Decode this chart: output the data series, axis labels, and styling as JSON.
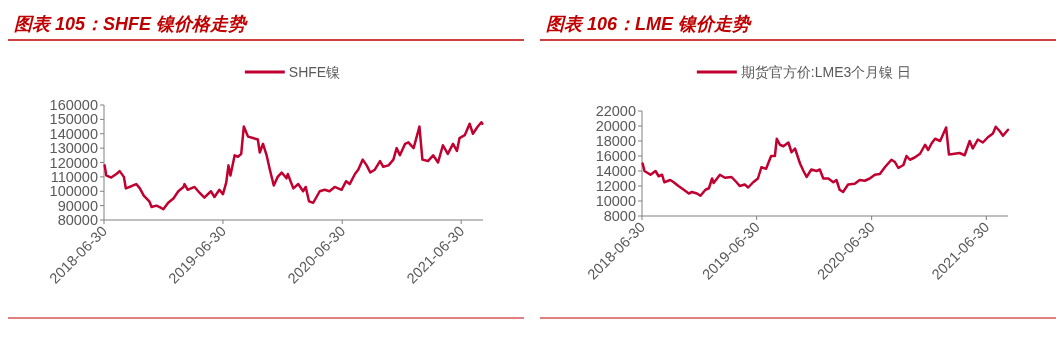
{
  "chart_data": [
    {
      "type": "line",
      "title": "图表 105：SHFE 镍价格走势",
      "legend": "top",
      "grid": false,
      "xlim": [
        "2018-06-30",
        "2021-09-05"
      ],
      "xticks": [
        "2018-06-30",
        "2019-06-30",
        "2020-06-30",
        "2021-06-30"
      ],
      "ylim": [
        80000,
        160000
      ],
      "yticks": [
        80000,
        90000,
        100000,
        110000,
        120000,
        130000,
        140000,
        150000,
        160000
      ],
      "x": [
        "2018-07-02",
        "2018-07-07",
        "2018-07-22",
        "2018-08-07",
        "2018-08-17",
        "2018-08-30",
        "2018-09-05",
        "2018-09-22",
        "2018-10-07",
        "2018-10-18",
        "2018-10-30",
        "2018-11-16",
        "2018-11-23",
        "2018-12-08",
        "2018-12-18",
        "2018-12-29",
        "2019-01-13",
        "2019-01-29",
        "2019-02-13",
        "2019-03-01",
        "2019-03-04",
        "2019-03-14",
        "2019-03-24",
        "2019-04-04",
        "2019-04-19",
        "2019-05-04",
        "2019-05-24",
        "2019-06-04",
        "2019-06-19",
        "2019-06-30",
        "2019-07-10",
        "2019-07-17",
        "2019-07-23",
        "2019-08-05",
        "2019-08-15",
        "2019-08-25",
        "2019-09-02",
        "2019-09-15",
        "2019-09-30",
        "2019-10-15",
        "2019-10-21",
        "2019-10-31",
        "2019-11-11",
        "2019-11-21",
        "2019-12-03",
        "2019-12-15",
        "2019-12-27",
        "2020-01-11",
        "2020-01-15",
        "2020-02-01",
        "2020-02-16",
        "2020-03-02",
        "2020-03-10",
        "2020-03-20",
        "2020-04-02",
        "2020-04-22",
        "2020-05-07",
        "2020-05-22",
        "2020-06-07",
        "2020-06-28",
        "2020-07-12",
        "2020-07-23",
        "2020-08-08",
        "2020-08-18",
        "2020-09-01",
        "2020-09-13",
        "2020-09-24",
        "2020-10-08",
        "2020-10-24",
        "2020-11-03",
        "2020-11-19",
        "2020-12-04",
        "2020-12-14",
        "2020-12-24",
        "2021-01-09",
        "2021-01-19",
        "2021-02-04",
        "2021-02-22",
        "2021-03-03",
        "2021-03-20",
        "2021-04-05",
        "2021-04-20",
        "2021-05-05",
        "2021-05-20",
        "2021-06-05",
        "2021-06-17",
        "2021-06-25",
        "2021-07-11",
        "2021-07-26",
        "2021-08-05",
        "2021-08-20",
        "2021-08-31",
        "2021-09-03"
      ],
      "series": [
        {
          "name": "SHFE镍",
          "color": "#c00030",
          "values": [
            118000,
            111000,
            109500,
            112000,
            114000,
            110000,
            102000,
            103500,
            105000,
            102000,
            97000,
            93000,
            89000,
            90000,
            89000,
            87500,
            92000,
            95000,
            100000,
            103000,
            105000,
            101000,
            102000,
            103000,
            99000,
            95500,
            100000,
            96000,
            101000,
            98000,
            106000,
            118000,
            111000,
            125000,
            124000,
            126000,
            145000,
            138000,
            137000,
            136000,
            127000,
            133000,
            125000,
            115000,
            104000,
            110000,
            113000,
            109000,
            112000,
            102000,
            105000,
            100000,
            103000,
            93000,
            92000,
            100000,
            101000,
            100000,
            103000,
            101000,
            107000,
            105000,
            112000,
            115000,
            122000,
            118000,
            113000,
            115000,
            121000,
            117000,
            118000,
            122000,
            130000,
            125000,
            133000,
            134000,
            130000,
            145000,
            122000,
            121000,
            125000,
            120000,
            132000,
            126000,
            133000,
            128000,
            137000,
            139000,
            147000,
            140000,
            145000,
            148000,
            147000
          ]
        }
      ]
    },
    {
      "type": "line",
      "title": "图表 106：LME 镍价走势",
      "legend": "top",
      "grid": false,
      "xlim": [
        "2018-06-30",
        "2021-09-07"
      ],
      "xticks": [
        "2018-06-30",
        "2019-06-30",
        "2020-06-30",
        "2021-06-30"
      ],
      "ylim": [
        8000,
        22000
      ],
      "yticks": [
        8000,
        10000,
        12000,
        14000,
        16000,
        18000,
        20000,
        22000
      ],
      "x": [
        "2018-07-02",
        "2018-07-08",
        "2018-07-27",
        "2018-08-12",
        "2018-08-22",
        "2018-09-02",
        "2018-09-09",
        "2018-09-28",
        "2018-10-09",
        "2018-10-24",
        "2018-11-10",
        "2018-11-26",
        "2018-12-06",
        "2018-12-22",
        "2019-01-02",
        "2019-01-18",
        "2019-01-29",
        "2019-02-08",
        "2019-02-13",
        "2019-03-05",
        "2019-03-21",
        "2019-04-11",
        "2019-04-27",
        "2019-05-07",
        "2019-05-23",
        "2019-06-03",
        "2019-06-19",
        "2019-07-04",
        "2019-07-15",
        "2019-07-30",
        "2019-08-15",
        "2019-08-27",
        "2019-09-02",
        "2019-09-12",
        "2019-09-23",
        "2019-10-09",
        "2019-10-19",
        "2019-10-30",
        "2019-11-15",
        "2019-11-26",
        "2019-12-06",
        "2019-12-21",
        "2020-01-07",
        "2020-01-17",
        "2020-01-28",
        "2020-02-13",
        "2020-02-29",
        "2020-03-10",
        "2020-03-20",
        "2020-03-31",
        "2020-04-16",
        "2020-05-07",
        "2020-05-23",
        "2020-06-08",
        "2020-06-24",
        "2020-07-10",
        "2020-07-26",
        "2020-08-11",
        "2020-09-01",
        "2020-09-12",
        "2020-09-23",
        "2020-10-09",
        "2020-10-19",
        "2020-10-30",
        "2020-11-14",
        "2020-12-01",
        "2020-12-17",
        "2020-12-27",
        "2021-01-07",
        "2021-01-18",
        "2021-02-03",
        "2021-02-22",
        "2021-03-03",
        "2021-03-21",
        "2021-04-06",
        "2021-04-22",
        "2021-05-08",
        "2021-05-18",
        "2021-06-03",
        "2021-06-19",
        "2021-07-05",
        "2021-07-21",
        "2021-07-30",
        "2021-08-12",
        "2021-08-22",
        "2021-09-07"
      ],
      "series": [
        {
          "name": "期货官方价:LME3个月镍 日",
          "color": "#c00030",
          "values": [
            15000,
            14000,
            13500,
            14000,
            13300,
            13500,
            12500,
            12800,
            12500,
            12000,
            11500,
            11000,
            11200,
            11000,
            10700,
            11500,
            11700,
            13000,
            12400,
            13500,
            13100,
            13200,
            12500,
            12000,
            12200,
            11800,
            12500,
            13000,
            14500,
            14300,
            16000,
            16000,
            18300,
            17500,
            17300,
            17800,
            16500,
            17000,
            15000,
            14000,
            13200,
            14200,
            14000,
            14200,
            13000,
            13000,
            12500,
            12800,
            11500,
            11200,
            12200,
            12300,
            12800,
            12700,
            13000,
            13500,
            13600,
            14500,
            15500,
            15200,
            14400,
            14800,
            16000,
            15500,
            15800,
            16300,
            17500,
            16800,
            17700,
            18300,
            18000,
            19800,
            16200,
            16300,
            16400,
            16100,
            18000,
            17000,
            18200,
            17800,
            18500,
            19000,
            19900,
            19300,
            18700,
            19500
          ]
        }
      ]
    }
  ]
}
